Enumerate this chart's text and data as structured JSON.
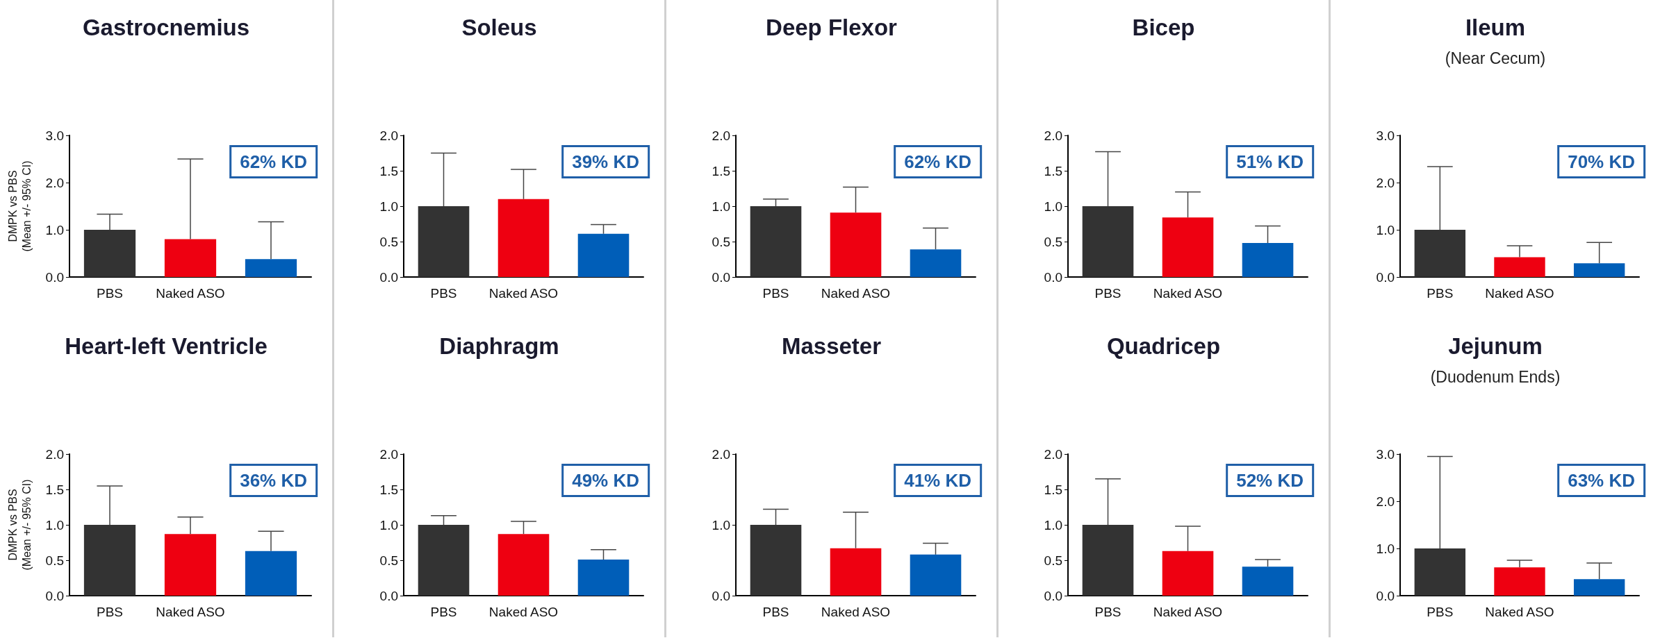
{
  "chart_data": [
    {
      "type": "bar",
      "title": "Gastrocnemius",
      "ylabel": "DMPK vs PBS\n(Mean +/- 95% CI)",
      "categories": [
        "PBS",
        "Naked ASO",
        null
      ],
      "values": [
        1.0,
        0.8,
        0.38
      ],
      "colors": [
        "#333333",
        "#ee0011",
        "#005eb8"
      ],
      "errors": [
        [
          1.0,
          1.33
        ],
        [
          0.8,
          2.5
        ],
        [
          0.38,
          1.17
        ]
      ],
      "ylim": [
        0,
        3
      ],
      "yticks": [
        {
          "value": 0,
          "label": "0.0"
        },
        {
          "value": 1,
          "label": "1.0"
        },
        {
          "value": 2,
          "label": "2.0"
        },
        {
          "value": 3,
          "label": "3.0"
        }
      ],
      "annotations": [
        "62% KD"
      ]
    },
    {
      "type": "bar",
      "title": "Soleus",
      "categories": [
        "PBS",
        "Naked ASO",
        null
      ],
      "values": [
        1.0,
        1.1,
        0.61
      ],
      "colors": [
        "#333333",
        "#ee0011",
        "#005eb8"
      ],
      "errors": [
        [
          1.0,
          1.75
        ],
        [
          1.1,
          1.52
        ],
        [
          0.61,
          0.74
        ]
      ],
      "ylim": [
        0,
        2
      ],
      "yticks": [
        {
          "value": 0,
          "label": "0.0"
        },
        {
          "value": 0.5,
          "label": "0.5"
        },
        {
          "value": 1,
          "label": "1.0"
        },
        {
          "value": 1.5,
          "label": "1.5"
        },
        {
          "value": 2,
          "label": "2.0"
        }
      ],
      "annotations": [
        "39% KD"
      ]
    },
    {
      "type": "bar",
      "title": "Deep Flexor",
      "categories": [
        "PBS",
        "Naked ASO",
        null
      ],
      "values": [
        1.0,
        0.91,
        0.39
      ],
      "colors": [
        "#333333",
        "#ee0011",
        "#005eb8"
      ],
      "errors": [
        [
          1.0,
          1.1
        ],
        [
          0.91,
          1.27
        ],
        [
          0.39,
          0.69
        ]
      ],
      "ylim": [
        0,
        2
      ],
      "yticks": [
        {
          "value": 0,
          "label": "0.0"
        },
        {
          "value": 0.5,
          "label": "0.5"
        },
        {
          "value": 1,
          "label": "1.0"
        },
        {
          "value": 1.5,
          "label": "1.5"
        },
        {
          "value": 2,
          "label": "2.0"
        }
      ],
      "annotations": [
        "62% KD"
      ]
    },
    {
      "type": "bar",
      "title": "Bicep",
      "categories": [
        "PBS",
        "Naked ASO",
        null
      ],
      "values": [
        1.0,
        0.84,
        0.48
      ],
      "colors": [
        "#333333",
        "#ee0011",
        "#005eb8"
      ],
      "errors": [
        [
          1.0,
          1.77
        ],
        [
          0.84,
          1.2
        ],
        [
          0.48,
          0.72
        ]
      ],
      "ylim": [
        0,
        2
      ],
      "yticks": [
        {
          "value": 0,
          "label": "0.0"
        },
        {
          "value": 0.5,
          "label": "0.5"
        },
        {
          "value": 1,
          "label": "1.0"
        },
        {
          "value": 1.5,
          "label": "1.5"
        },
        {
          "value": 2,
          "label": "2.0"
        }
      ],
      "annotations": [
        "51% KD"
      ]
    },
    {
      "type": "bar",
      "title": "Ileum",
      "subtitle": "(Near Cecum)",
      "categories": [
        "PBS",
        "Naked ASO",
        null
      ],
      "values": [
        1.0,
        0.42,
        0.29
      ],
      "colors": [
        "#333333",
        "#ee0011",
        "#005eb8"
      ],
      "errors": [
        [
          1.0,
          2.34
        ],
        [
          0.42,
          0.66
        ],
        [
          0.29,
          0.73
        ]
      ],
      "ylim": [
        0,
        3
      ],
      "yticks": [
        {
          "value": 0,
          "label": "0.0"
        },
        {
          "value": 1,
          "label": "1.0"
        },
        {
          "value": 2,
          "label": "2.0"
        },
        {
          "value": 3,
          "label": "3.0"
        }
      ],
      "annotations": [
        "70% KD"
      ]
    },
    {
      "type": "bar",
      "title": "Heart-left Ventricle",
      "ylabel": "DMPK vs PBS\n(Mean +/- 95% CI)",
      "categories": [
        "PBS",
        "Naked ASO",
        null
      ],
      "values": [
        1.0,
        0.87,
        0.63
      ],
      "colors": [
        "#333333",
        "#ee0011",
        "#005eb8"
      ],
      "errors": [
        [
          1.0,
          1.55
        ],
        [
          0.87,
          1.11
        ],
        [
          0.63,
          0.91
        ]
      ],
      "ylim": [
        0,
        2
      ],
      "yticks": [
        {
          "value": 0,
          "label": "0.0"
        },
        {
          "value": 0.5,
          "label": "0.5"
        },
        {
          "value": 1,
          "label": "1.0"
        },
        {
          "value": 1.5,
          "label": "1.5"
        },
        {
          "value": 2,
          "label": "2.0"
        }
      ],
      "annotations": [
        "36% KD"
      ]
    },
    {
      "type": "bar",
      "title": "Diaphragm",
      "categories": [
        "PBS",
        "Naked ASO",
        null
      ],
      "values": [
        1.0,
        0.87,
        0.51
      ],
      "colors": [
        "#333333",
        "#ee0011",
        "#005eb8"
      ],
      "errors": [
        [
          1.0,
          1.13
        ],
        [
          0.87,
          1.05
        ],
        [
          0.51,
          0.65
        ]
      ],
      "ylim": [
        0,
        2
      ],
      "yticks": [
        {
          "value": 0,
          "label": "0.0"
        },
        {
          "value": 0.5,
          "label": "0.5"
        },
        {
          "value": 1,
          "label": "1.0"
        },
        {
          "value": 1.5,
          "label": "1.5"
        },
        {
          "value": 2,
          "label": "2.0"
        }
      ],
      "annotations": [
        "49% KD"
      ]
    },
    {
      "type": "bar",
      "title": "Masseter",
      "categories": [
        "PBS",
        "Naked ASO",
        null
      ],
      "values": [
        1.0,
        0.67,
        0.58
      ],
      "colors": [
        "#333333",
        "#ee0011",
        "#005eb8"
      ],
      "errors": [
        [
          1.0,
          1.22
        ],
        [
          0.67,
          1.18
        ],
        [
          0.58,
          0.74
        ]
      ],
      "ylim": [
        0,
        2
      ],
      "yticks": [
        {
          "value": 0,
          "label": "0.0"
        },
        {
          "value": 1,
          "label": "1.0"
        },
        {
          "value": 2,
          "label": "2.0"
        }
      ],
      "annotations": [
        "41% KD"
      ]
    },
    {
      "type": "bar",
      "title": "Quadricep",
      "categories": [
        "PBS",
        "Naked ASO",
        null
      ],
      "values": [
        1.0,
        0.63,
        0.41
      ],
      "colors": [
        "#333333",
        "#ee0011",
        "#005eb8"
      ],
      "errors": [
        [
          1.0,
          1.65
        ],
        [
          0.63,
          0.98
        ],
        [
          0.41,
          0.51
        ]
      ],
      "ylim": [
        0,
        2
      ],
      "yticks": [
        {
          "value": 0,
          "label": "0.0"
        },
        {
          "value": 0.5,
          "label": "0.5"
        },
        {
          "value": 1,
          "label": "1.0"
        },
        {
          "value": 1.5,
          "label": "1.5"
        },
        {
          "value": 2,
          "label": "2.0"
        }
      ],
      "annotations": [
        "52% KD"
      ]
    },
    {
      "type": "bar",
      "title": "Jejunum",
      "subtitle": "(Duodenum Ends)",
      "categories": [
        "PBS",
        "Naked ASO",
        null
      ],
      "values": [
        1.0,
        0.6,
        0.35
      ],
      "colors": [
        "#333333",
        "#ee0011",
        "#005eb8"
      ],
      "errors": [
        [
          1.0,
          2.95
        ],
        [
          0.6,
          0.75
        ],
        [
          0.35,
          0.69
        ]
      ],
      "ylim": [
        0,
        3
      ],
      "yticks": [
        {
          "value": 0,
          "label": "0.0"
        },
        {
          "value": 1,
          "label": "1.0"
        },
        {
          "value": 2,
          "label": "2.0"
        },
        {
          "value": 3,
          "label": "3.0"
        }
      ],
      "annotations": [
        "63% KD"
      ]
    }
  ]
}
